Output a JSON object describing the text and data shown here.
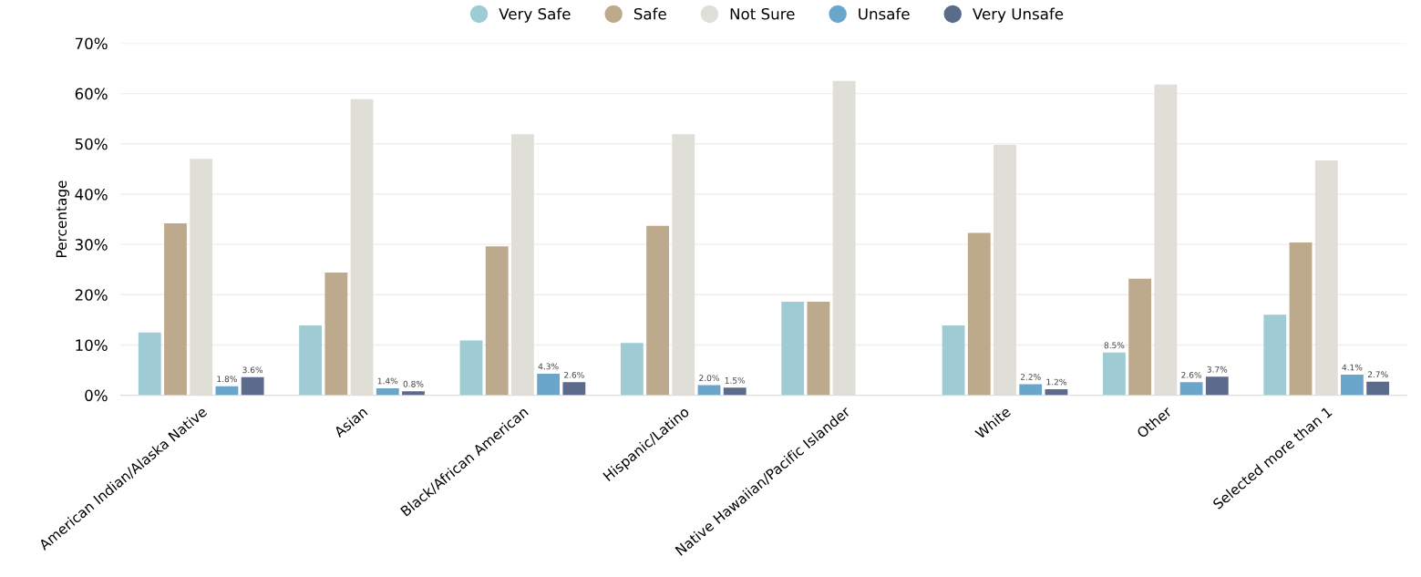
{
  "chart_data": {
    "type": "bar",
    "ylabel": "Percentage",
    "categories": [
      "American Indian/Alaska Native",
      "Asian",
      "Black/African American",
      "Hispanic/Latino",
      "Native Hawaiian/Pacific Islander",
      "White",
      "Other",
      "Selected more than 1"
    ],
    "series": [
      {
        "name": "Very Safe",
        "color": "#9ecbd4",
        "values": [
          12.5,
          13.9,
          10.9,
          10.4,
          18.6,
          13.9,
          8.5,
          16.0
        ],
        "value_labels": [
          null,
          null,
          null,
          null,
          null,
          null,
          "8.5%",
          null
        ]
      },
      {
        "name": "Safe",
        "color": "#bdaa8c",
        "values": [
          34.2,
          24.4,
          29.6,
          33.7,
          18.6,
          32.3,
          23.2,
          30.4
        ]
      },
      {
        "name": "Not Sure",
        "color": "#dfdfd7",
        "values": [
          47.0,
          58.9,
          51.9,
          51.9,
          62.5,
          49.8,
          61.8,
          46.7
        ]
      },
      {
        "name": "Unsafe",
        "color": "#6aa6cc",
        "values": [
          1.8,
          1.4,
          4.3,
          2.0,
          null,
          2.2,
          2.6,
          4.1
        ],
        "value_labels": [
          "1.8%",
          "1.4%",
          "4.3%",
          "2.0%",
          null,
          "2.2%",
          "2.6%",
          "4.1%"
        ]
      },
      {
        "name": "Very Unsafe",
        "color": "#5a6b8c",
        "values": [
          3.6,
          0.8,
          2.6,
          1.5,
          null,
          1.2,
          3.7,
          2.7
        ],
        "value_labels": [
          "3.6%",
          "0.8%",
          "2.6%",
          "1.5%",
          null,
          "1.2%",
          "3.7%",
          "2.7%"
        ]
      }
    ],
    "ylim": [
      0,
      70
    ],
    "yticks": [
      {
        "value": 0,
        "label": "0%"
      },
      {
        "value": 10,
        "label": "10%"
      },
      {
        "value": 20,
        "label": "20%"
      },
      {
        "value": 30,
        "label": "30%"
      },
      {
        "value": 40,
        "label": "40%"
      },
      {
        "value": 50,
        "label": "50%"
      },
      {
        "value": 60,
        "label": "60%"
      },
      {
        "value": 70,
        "label": "70%"
      }
    ],
    "grid": "y",
    "legend": "top",
    "marker": "circle"
  }
}
